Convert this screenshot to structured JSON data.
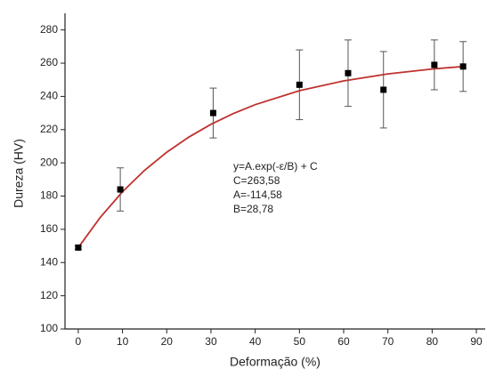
{
  "chart_data": {
    "type": "scatter",
    "x_label": "Deformação (%)",
    "y_label": "Dureza (HV)",
    "x": [
      0,
      9.5,
      30.5,
      50,
      61,
      69,
      80.5,
      87
    ],
    "values": [
      149,
      184,
      230,
      247,
      254,
      244,
      259,
      258
    ],
    "errors": [
      1,
      13,
      15,
      21,
      20,
      23,
      15,
      15
    ],
    "color": "#000000",
    "fit": {
      "color": "#c0302e",
      "x": [
        0,
        5,
        10,
        15,
        20,
        25,
        30,
        35,
        40,
        50,
        60,
        70,
        80,
        87
      ],
      "values": [
        149.0,
        167.27,
        182.63,
        195.54,
        206.39,
        215.51,
        223.18,
        229.62,
        235.04,
        243.41,
        249.34,
        253.52,
        256.47,
        258.0
      ]
    },
    "annotation": [
      "y=A.exp(-ε/B) + C",
      "C=263,58",
      "A=-114,58",
      "B=28,78"
    ],
    "xlim": [
      -3,
      92
    ],
    "ylim": [
      100,
      290
    ],
    "xticks": [
      0,
      10,
      20,
      30,
      40,
      50,
      60,
      70,
      80,
      90
    ],
    "yticks": [
      100,
      120,
      140,
      160,
      180,
      200,
      220,
      240,
      260,
      280
    ]
  }
}
